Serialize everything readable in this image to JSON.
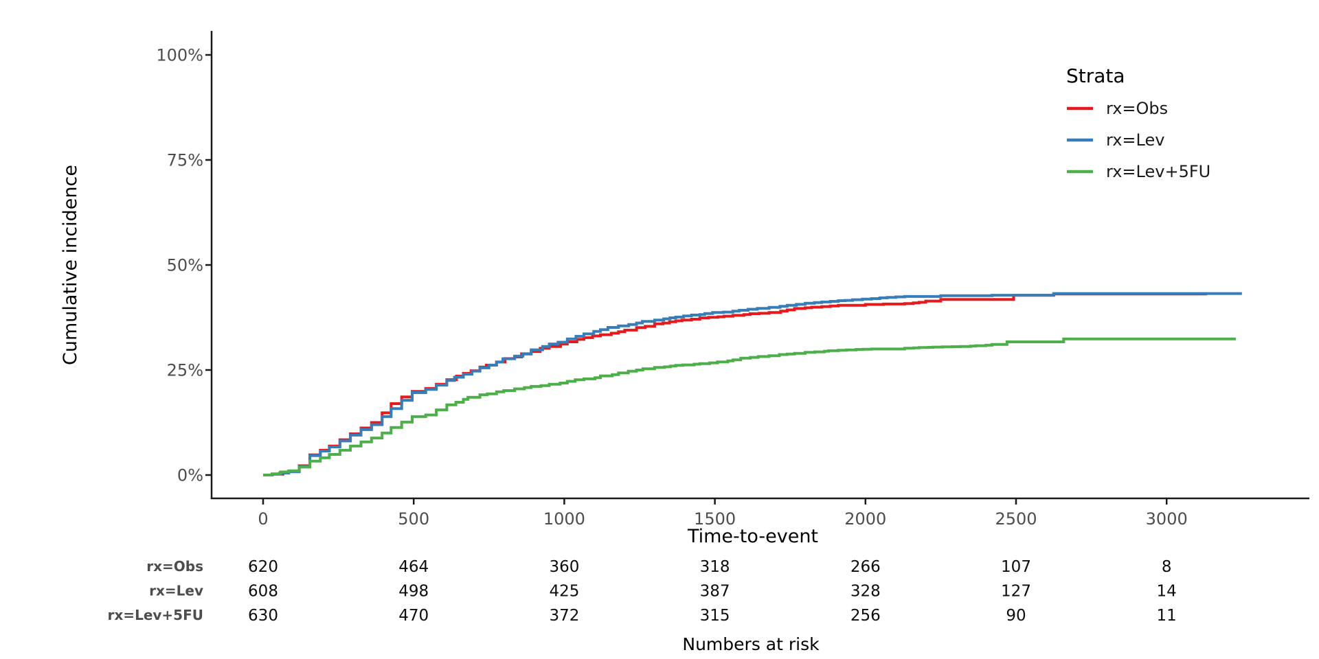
{
  "chart_data": {
    "type": "line",
    "subtype": "cumulative-incidence-step-curves",
    "title": "",
    "xlabel": "Time-to-event",
    "ylabel": "Cumulative incidence",
    "x_ticks": [
      0,
      500,
      1000,
      1500,
      2000,
      2500,
      3000
    ],
    "y_tick_values": [
      0,
      25,
      50,
      75,
      100
    ],
    "y_tick_labels": [
      "0%",
      "25%",
      "50%",
      "75%",
      "100%"
    ],
    "xlim": [
      -170,
      3474
    ],
    "ylim": [
      0,
      100
    ],
    "grid": false,
    "legend": {
      "title": "Strata",
      "position": "right"
    },
    "series": [
      {
        "name": "rx=Obs",
        "color": "#E41A1C",
        "points": [
          [
            0,
            0
          ],
          [
            30,
            0.2
          ],
          [
            85,
            0.8
          ],
          [
            120,
            2.2
          ],
          [
            155,
            4.8
          ],
          [
            190,
            5.9
          ],
          [
            220,
            6.9
          ],
          [
            255,
            8.4
          ],
          [
            290,
            9.8
          ],
          [
            325,
            11.2
          ],
          [
            360,
            12.5
          ],
          [
            395,
            14.8
          ],
          [
            425,
            17
          ],
          [
            460,
            18.6
          ],
          [
            495,
            19.9
          ],
          [
            540,
            20.6
          ],
          [
            575,
            21.6
          ],
          [
            610,
            22.7
          ],
          [
            665,
            24.2
          ],
          [
            720,
            25.7
          ],
          [
            775,
            26.9
          ],
          [
            835,
            28.1
          ],
          [
            890,
            29.4
          ],
          [
            950,
            30.6
          ],
          [
            1010,
            31.7
          ],
          [
            1065,
            32.7
          ],
          [
            1120,
            33.4
          ],
          [
            1180,
            34.1
          ],
          [
            1240,
            35.1
          ],
          [
            1300,
            36
          ],
          [
            1370,
            36.7
          ],
          [
            1450,
            37.4
          ],
          [
            1560,
            38
          ],
          [
            1680,
            38.7
          ],
          [
            1740,
            39.3
          ],
          [
            1800,
            39.8
          ],
          [
            1855,
            40.1
          ],
          [
            1910,
            40.4
          ],
          [
            2000,
            40.6
          ],
          [
            2060,
            40.7
          ],
          [
            2130,
            40.8
          ],
          [
            2200,
            41.4
          ],
          [
            2250,
            41.8
          ],
          [
            2488,
            41.8
          ],
          [
            2492,
            42.8
          ],
          [
            2618,
            42.8
          ],
          [
            2625,
            43.1
          ],
          [
            3135,
            43.1
          ]
        ]
      },
      {
        "name": "rx=Lev",
        "color": "#377EB8",
        "points": [
          [
            0,
            0
          ],
          [
            30,
            0.2
          ],
          [
            85,
            0.8
          ],
          [
            120,
            2
          ],
          [
            155,
            4.6
          ],
          [
            190,
            5.7
          ],
          [
            220,
            6.7
          ],
          [
            255,
            8.1
          ],
          [
            290,
            9.5
          ],
          [
            325,
            10.8
          ],
          [
            360,
            12
          ],
          [
            395,
            13.9
          ],
          [
            425,
            15.8
          ],
          [
            460,
            17.8
          ],
          [
            495,
            19.6
          ],
          [
            540,
            20.4
          ],
          [
            575,
            21.4
          ],
          [
            610,
            22.5
          ],
          [
            665,
            24
          ],
          [
            720,
            25.5
          ],
          [
            775,
            26.9
          ],
          [
            835,
            28.3
          ],
          [
            890,
            29.8
          ],
          [
            950,
            31.2
          ],
          [
            1010,
            32.4
          ],
          [
            1065,
            33.6
          ],
          [
            1120,
            34.6
          ],
          [
            1180,
            35.5
          ],
          [
            1240,
            36.2
          ],
          [
            1300,
            36.9
          ],
          [
            1370,
            37.6
          ],
          [
            1450,
            38.2
          ],
          [
            1560,
            39
          ],
          [
            1680,
            39.9
          ],
          [
            1740,
            40.4
          ],
          [
            1800,
            40.9
          ],
          [
            1855,
            41.2
          ],
          [
            1910,
            41.5
          ],
          [
            2020,
            42
          ],
          [
            2130,
            42.5
          ],
          [
            2250,
            42.7
          ],
          [
            2420,
            42.8
          ],
          [
            2618,
            42.8
          ],
          [
            2625,
            43.2
          ],
          [
            3250,
            43.2
          ]
        ]
      },
      {
        "name": "rx=Lev+5FU",
        "color": "#4DAF4A",
        "points": [
          [
            0,
            0
          ],
          [
            30,
            0.3
          ],
          [
            85,
            1
          ],
          [
            120,
            1.9
          ],
          [
            155,
            3.3
          ],
          [
            190,
            4.1
          ],
          [
            220,
            4.9
          ],
          [
            255,
            5.9
          ],
          [
            290,
            6.9
          ],
          [
            325,
            7.9
          ],
          [
            360,
            8.8
          ],
          [
            395,
            10
          ],
          [
            425,
            11.3
          ],
          [
            460,
            12.6
          ],
          [
            495,
            13.9
          ],
          [
            540,
            14.3
          ],
          [
            575,
            15.5
          ],
          [
            610,
            16.7
          ],
          [
            665,
            18
          ],
          [
            680,
            18.5
          ],
          [
            720,
            19.1
          ],
          [
            775,
            19.8
          ],
          [
            835,
            20.5
          ],
          [
            890,
            21.1
          ],
          [
            950,
            21.6
          ],
          [
            1010,
            22.3
          ],
          [
            1065,
            22.9
          ],
          [
            1120,
            23.6
          ],
          [
            1180,
            24.3
          ],
          [
            1240,
            25
          ],
          [
            1300,
            25.6
          ],
          [
            1370,
            26.1
          ],
          [
            1450,
            26.5
          ],
          [
            1560,
            27.4
          ],
          [
            1680,
            28.4
          ],
          [
            1740,
            28.8
          ],
          [
            1800,
            29.2
          ],
          [
            1910,
            29.7
          ],
          [
            2020,
            30
          ],
          [
            2130,
            30.2
          ],
          [
            2315,
            30.6
          ],
          [
            2400,
            30.9
          ],
          [
            2420,
            31.1
          ],
          [
            2470,
            31.7
          ],
          [
            2650,
            31.7
          ],
          [
            2658,
            32.4
          ],
          [
            3230,
            32.4
          ]
        ]
      }
    ],
    "risk_table": {
      "title": "Numbers at risk",
      "time_points": [
        0,
        500,
        1000,
        1500,
        2000,
        2500,
        3000
      ],
      "rows": [
        {
          "label": "rx=Obs",
          "counts": [
            620,
            464,
            360,
            318,
            266,
            107,
            8
          ]
        },
        {
          "label": "rx=Lev",
          "counts": [
            608,
            498,
            425,
            387,
            328,
            127,
            14
          ]
        },
        {
          "label": "rx=Lev+5FU",
          "counts": [
            630,
            470,
            372,
            315,
            256,
            90,
            11
          ]
        }
      ]
    },
    "colors": {
      "axis_text": "#4D4D4D",
      "axis_line": "#1A1A1A",
      "title_text": "#000000",
      "background": "#FFFFFF"
    }
  }
}
